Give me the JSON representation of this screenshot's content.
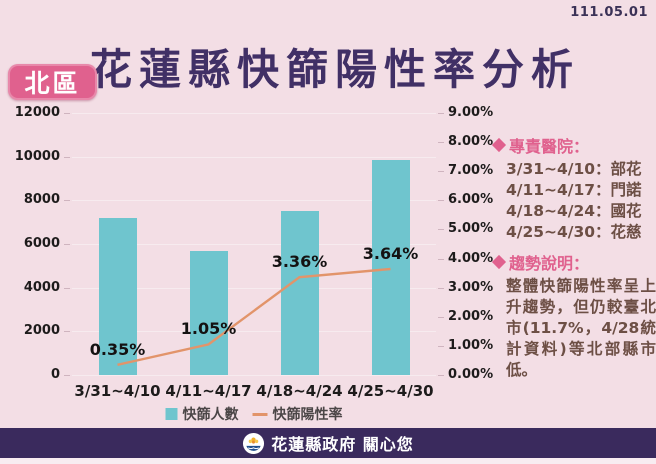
{
  "meta": {
    "date": "111.05.01"
  },
  "header": {
    "title": "花蓮縣快篩陽性率分析",
    "region_badge": "北區"
  },
  "chart_data": {
    "type": "bar+line",
    "categories": [
      "3/31~4/10",
      "4/11~4/17",
      "4/18~4/24",
      "4/25~4/30"
    ],
    "bar_series": {
      "name": "快篩人數",
      "values": [
        7200,
        5700,
        7500,
        9850
      ],
      "color": "#6fc5ce"
    },
    "line_series": {
      "name": "快篩陽性率",
      "values_pct": [
        0.35,
        1.05,
        3.36,
        3.64
      ],
      "point_labels": [
        "0.35%",
        "1.05%",
        "3.36%",
        "3.64%"
      ],
      "color": "#e2946a"
    },
    "left_axis": {
      "min": 0,
      "max": 12000,
      "step": 2000,
      "ticks": [
        "12000",
        "10000",
        "8000",
        "6000",
        "4000",
        "2000",
        "0"
      ]
    },
    "right_axis": {
      "min": 0,
      "max": 9,
      "step": 1,
      "ticks": [
        "9.00%",
        "8.00%",
        "7.00%",
        "6.00%",
        "5.00%",
        "4.00%",
        "3.00%",
        "2.00%",
        "1.00%",
        "0.00%"
      ]
    },
    "grid": true,
    "legend_position": "bottom"
  },
  "annotations": {
    "hospitals": {
      "heading": "專責醫院：",
      "items": [
        "3/31~4/10：部花",
        "4/11~4/17：門諾",
        "4/18~4/24：國花",
        "4/25~4/30：花慈"
      ]
    },
    "trend": {
      "heading": "趨勢說明：",
      "text": "整體快篩陽性率呈上升趨勢，但仍較臺北市(11.7%，4/28統計資料)等北部縣市低。"
    }
  },
  "footer": {
    "text": "花蓮縣政府 關心您"
  },
  "colors": {
    "background": "#f3dee5",
    "title_purple": "#413066",
    "badge_pink": "#e0618e",
    "bar_teal": "#6fc5ce",
    "line_orange": "#e2946a",
    "annotation_brown": "#6d4f45",
    "footer_purple": "#3a2a5d"
  }
}
